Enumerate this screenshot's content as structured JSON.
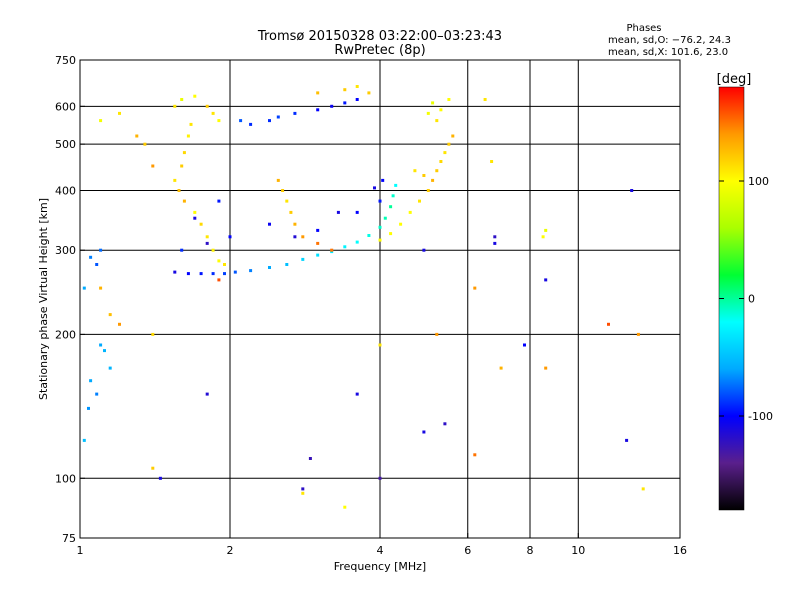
{
  "chart_data": {
    "type": "scatter",
    "title": "Tromsø 20150328 03:22:00–03:23:43",
    "subtitle": "RwPretec (8p)",
    "stats": {
      "heading": "Phases",
      "line_o": "mean, sd,O: −76.2, 24.3",
      "line_x": "mean, sd,X: 101.6, 23.0"
    },
    "xlabel": "Frequency [MHz]",
    "ylabel": "Stationary phase Virtual Height [km]",
    "x_scale": "log",
    "y_scale": "log",
    "xlim": [
      1,
      16
    ],
    "ylim": [
      75,
      750
    ],
    "x_ticks": [
      1,
      2,
      4,
      6,
      8,
      10,
      16
    ],
    "x_tick_labels": [
      "1",
      "2",
      "4",
      "6",
      "8",
      "10",
      "16"
    ],
    "x_grid": [
      2,
      4,
      6,
      8,
      10
    ],
    "y_ticks": [
      75,
      100,
      200,
      300,
      400,
      500,
      600,
      750
    ],
    "y_tick_labels": [
      "75",
      "100",
      "200",
      "300",
      "400",
      "500",
      "600",
      "750"
    ],
    "y_grid": [
      100,
      200,
      300,
      400,
      500,
      600
    ],
    "grid": true,
    "colorbar": {
      "label": "[deg]",
      "range": [
        -180,
        180
      ],
      "tick_values": [
        100,
        0,
        -100
      ],
      "tick_labels": [
        "100",
        "0",
        "-100"
      ],
      "colors": [
        "#000000",
        "#5a1f8c",
        "#0000ff",
        "#00aaff",
        "#00ffff",
        "#00ff33",
        "#aaff00",
        "#ffff00",
        "#ff9900",
        "#ff0000"
      ]
    },
    "series": [
      {
        "points": [
          [
            1.55,
            270,
            -110
          ],
          [
            1.65,
            268,
            -100
          ],
          [
            1.75,
            268,
            -95
          ],
          [
            1.85,
            268,
            -90
          ],
          [
            1.95,
            268,
            -85
          ],
          [
            2.05,
            270,
            -80
          ],
          [
            2.2,
            272,
            -70
          ],
          [
            2.4,
            276,
            -60
          ],
          [
            2.6,
            280,
            -50
          ],
          [
            2.8,
            287,
            -40
          ],
          [
            3.0,
            293,
            -35
          ],
          [
            3.2,
            298,
            -30
          ],
          [
            3.4,
            305,
            -25
          ],
          [
            3.6,
            312,
            -20
          ],
          [
            3.8,
            322,
            -15
          ],
          [
            4.0,
            335,
            -10
          ],
          [
            4.1,
            350,
            -5
          ],
          [
            4.2,
            370,
            0
          ],
          [
            4.25,
            390,
            -10
          ],
          [
            4.3,
            410,
            -20
          ],
          [
            1.6,
            300,
            -90
          ],
          [
            1.8,
            310,
            -120
          ],
          [
            2.0,
            320,
            -100
          ],
          [
            1.7,
            350,
            -110
          ],
          [
            1.9,
            380,
            -95
          ],
          [
            2.4,
            340,
            -105
          ],
          [
            2.7,
            320,
            -115
          ],
          [
            3.0,
            330,
            -100
          ],
          [
            3.3,
            360,
            -110
          ],
          [
            3.6,
            360,
            -100
          ],
          [
            4.0,
            380,
            -95
          ],
          [
            4.05,
            420,
            -100
          ],
          [
            3.9,
            405,
            -110
          ],
          [
            2.4,
            560,
            -90
          ],
          [
            2.5,
            570,
            -85
          ],
          [
            2.7,
            580,
            -90
          ],
          [
            3.0,
            590,
            -100
          ],
          [
            3.2,
            600,
            -105
          ],
          [
            3.4,
            610,
            -95
          ],
          [
            3.6,
            620,
            -100
          ],
          [
            2.2,
            550,
            -90
          ],
          [
            2.1,
            560,
            -80
          ],
          [
            1.05,
            290,
            -70
          ],
          [
            1.08,
            280,
            -80
          ],
          [
            1.1,
            300,
            -75
          ],
          [
            1.02,
            250,
            -60
          ],
          [
            1.05,
            160,
            -60
          ],
          [
            1.08,
            150,
            -70
          ],
          [
            1.04,
            140,
            -65
          ],
          [
            1.1,
            190,
            -60
          ],
          [
            1.12,
            185,
            -55
          ],
          [
            1.02,
            120,
            -50
          ],
          [
            1.15,
            170,
            -55
          ],
          [
            3.6,
            150,
            -110
          ],
          [
            4.9,
            125,
            -110
          ],
          [
            5.4,
            130,
            -120
          ],
          [
            4.0,
            100,
            -130
          ],
          [
            2.9,
            110,
            -125
          ],
          [
            6.8,
            320,
            -120
          ],
          [
            6.8,
            310,
            -110
          ],
          [
            7.8,
            190,
            -100
          ],
          [
            8.6,
            260,
            -110
          ],
          [
            12.8,
            400,
            -110
          ],
          [
            12.5,
            120,
            -110
          ],
          [
            2.8,
            95,
            -120
          ],
          [
            1.45,
            100,
            -110
          ],
          [
            1.8,
            150,
            -115
          ],
          [
            4.9,
            300,
            -110
          ]
        ]
      },
      {
        "points": [
          [
            1.55,
            420,
            110
          ],
          [
            1.6,
            450,
            120
          ],
          [
            1.62,
            480,
            115
          ],
          [
            1.65,
            520,
            105
          ],
          [
            1.67,
            550,
            110
          ],
          [
            1.58,
            400,
            125
          ],
          [
            1.62,
            380,
            130
          ],
          [
            1.7,
            360,
            100
          ],
          [
            1.75,
            340,
            115
          ],
          [
            1.8,
            320,
            110
          ],
          [
            1.85,
            300,
            105
          ],
          [
            1.9,
            285,
            100
          ],
          [
            1.95,
            280,
            110
          ],
          [
            1.6,
            620,
            90
          ],
          [
            1.7,
            630,
            100
          ],
          [
            1.8,
            600,
            120
          ],
          [
            1.85,
            580,
            110
          ],
          [
            1.9,
            560,
            100
          ],
          [
            1.55,
            600,
            110
          ],
          [
            2.5,
            420,
            130
          ],
          [
            2.55,
            400,
            120
          ],
          [
            2.6,
            380,
            110
          ],
          [
            2.65,
            360,
            120
          ],
          [
            2.7,
            340,
            130
          ],
          [
            2.8,
            320,
            140
          ],
          [
            3.0,
            310,
            150
          ],
          [
            3.2,
            300,
            150
          ],
          [
            4.0,
            315,
            100
          ],
          [
            4.2,
            325,
            100
          ],
          [
            4.4,
            340,
            100
          ],
          [
            4.6,
            360,
            100
          ],
          [
            4.8,
            380,
            110
          ],
          [
            5.0,
            400,
            120
          ],
          [
            5.1,
            420,
            130
          ],
          [
            5.2,
            440,
            120
          ],
          [
            5.3,
            460,
            115
          ],
          [
            5.4,
            480,
            110
          ],
          [
            5.5,
            500,
            120
          ],
          [
            5.6,
            520,
            130
          ],
          [
            5.2,
            560,
            110
          ],
          [
            5.3,
            590,
            100
          ],
          [
            5.1,
            610,
            90
          ],
          [
            5.5,
            620,
            100
          ],
          [
            5.0,
            580,
            95
          ],
          [
            4.9,
            430,
            120
          ],
          [
            4.7,
            440,
            110
          ],
          [
            3.4,
            650,
            120
          ],
          [
            3.6,
            660,
            110
          ],
          [
            3.8,
            640,
            120
          ],
          [
            3.0,
            640,
            125
          ],
          [
            1.35,
            500,
            120
          ],
          [
            1.4,
            450,
            140
          ],
          [
            1.3,
            520,
            130
          ],
          [
            1.2,
            580,
            110
          ],
          [
            1.1,
            560,
            95
          ],
          [
            1.1,
            250,
            130
          ],
          [
            1.15,
            220,
            125
          ],
          [
            1.2,
            210,
            140
          ],
          [
            1.4,
            200,
            115
          ],
          [
            6.5,
            620,
            110
          ],
          [
            6.2,
            250,
            140
          ],
          [
            7.0,
            170,
            130
          ],
          [
            6.7,
            460,
            110
          ],
          [
            8.5,
            320,
            100
          ],
          [
            8.6,
            330,
            90
          ],
          [
            8.6,
            170,
            140
          ],
          [
            11.5,
            210,
            160
          ],
          [
            13.2,
            200,
            140
          ],
          [
            13.5,
            95,
            110
          ],
          [
            4.0,
            190,
            110
          ],
          [
            5.2,
            200,
            140
          ],
          [
            1.4,
            105,
            120
          ],
          [
            3.4,
            87,
            100
          ],
          [
            6.2,
            112,
            150
          ],
          [
            2.8,
            93,
            110
          ],
          [
            1.9,
            260,
            160
          ]
        ]
      }
    ]
  }
}
